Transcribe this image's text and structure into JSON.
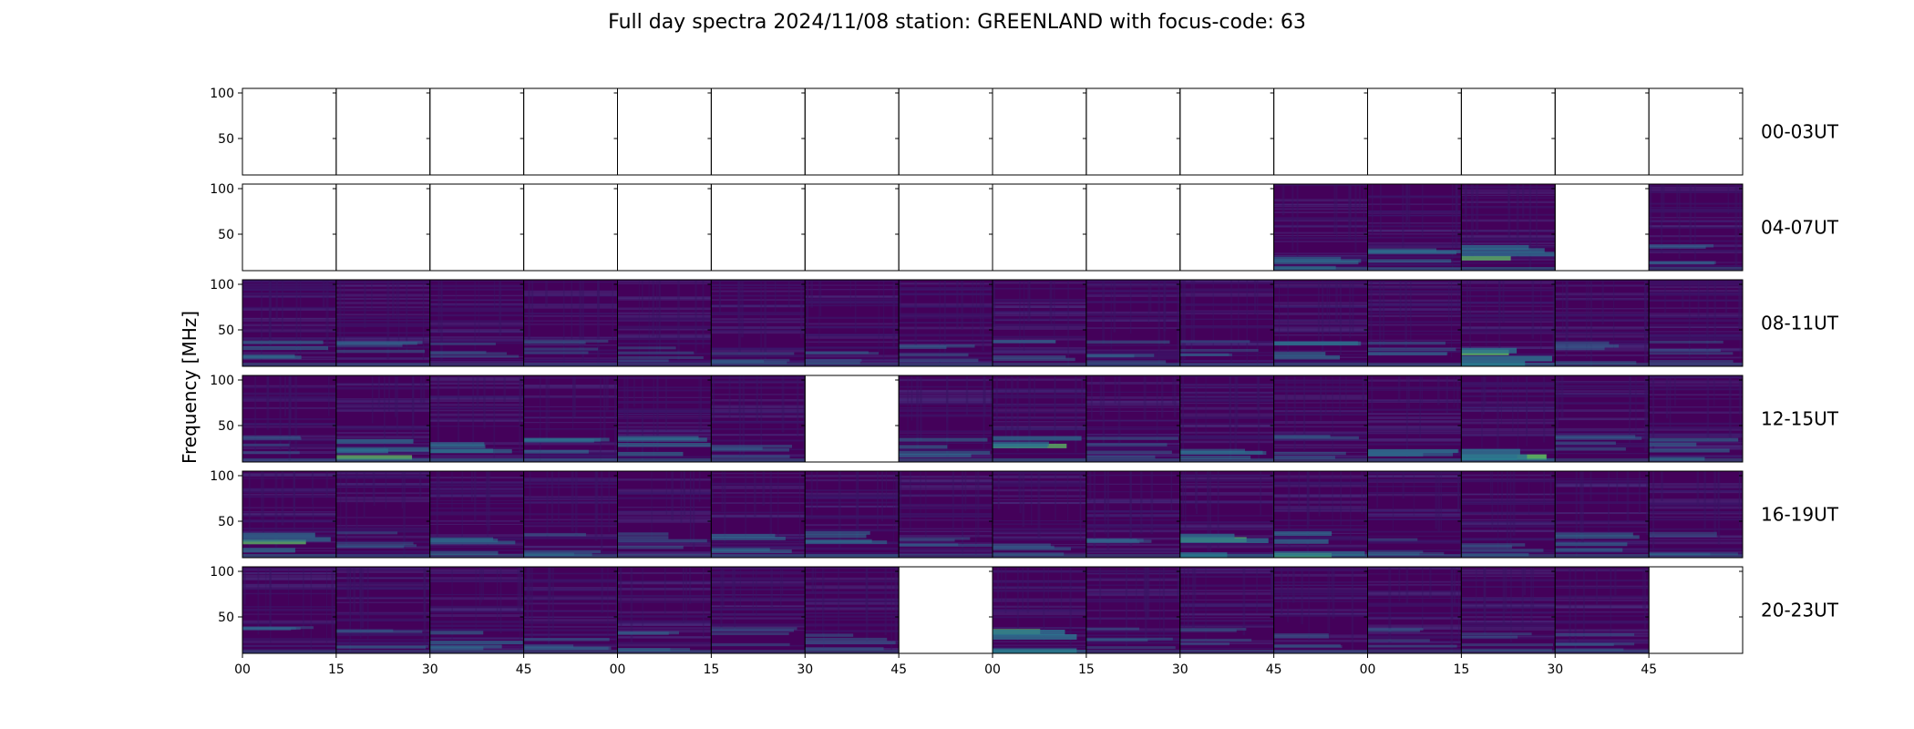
{
  "chart_data": {
    "type": "heatmap",
    "title": "Full day spectra 2024/11/08 station: GREENLAND with focus-code: 63",
    "ylabel": "Frequency [MHz]",
    "y_ticks": [
      "100",
      "50"
    ],
    "ylim": [
      10,
      105
    ],
    "x_tick_labels": [
      "00",
      "15",
      "30",
      "45",
      "00",
      "15",
      "30",
      "45",
      "00",
      "15",
      "30",
      "45",
      "00",
      "15",
      "30",
      "45"
    ],
    "colormap": "viridis",
    "colors": {
      "background": "#44015a",
      "low": "#440154",
      "mid": "#2c728e",
      "high": "#5ec962"
    },
    "rows": [
      {
        "label": "00-03UT",
        "panels": [
          0,
          0,
          0,
          0,
          0,
          0,
          0,
          0,
          0,
          0,
          0,
          0,
          0,
          0,
          0,
          0
        ],
        "bright": [
          0,
          0,
          0,
          0,
          0,
          0,
          0,
          0,
          0,
          0,
          0,
          0,
          0,
          0,
          0,
          0
        ]
      },
      {
        "label": "04-07UT",
        "panels": [
          0,
          0,
          0,
          0,
          0,
          0,
          0,
          0,
          0,
          0,
          0,
          1,
          1,
          1,
          0,
          1
        ],
        "bright": [
          0,
          0,
          0,
          0,
          0,
          0,
          0,
          0,
          0,
          0,
          0,
          0.4,
          0.4,
          0.6,
          0,
          0.3
        ]
      },
      {
        "label": "08-11UT",
        "panels": [
          1,
          1,
          1,
          1,
          1,
          1,
          1,
          1,
          1,
          1,
          1,
          1,
          1,
          1,
          1,
          1
        ],
        "bright": [
          0.4,
          0.3,
          0.2,
          0.2,
          0.2,
          0.2,
          0.2,
          0.3,
          0.3,
          0.3,
          0.2,
          0.5,
          0.3,
          0.8,
          0.3,
          0.2
        ]
      },
      {
        "label": "12-15UT",
        "panels": [
          1,
          1,
          1,
          1,
          1,
          1,
          0,
          1,
          1,
          1,
          1,
          1,
          1,
          1,
          1,
          1
        ],
        "bright": [
          0.2,
          0.6,
          0.5,
          0.4,
          0.5,
          0.3,
          0,
          0.4,
          0.6,
          0.3,
          0.4,
          0.3,
          0.4,
          0.8,
          0.3,
          0.4
        ]
      },
      {
        "label": "16-19UT",
        "panels": [
          1,
          1,
          1,
          1,
          1,
          1,
          1,
          1,
          1,
          1,
          1,
          1,
          1,
          1,
          1,
          1
        ],
        "bright": [
          0.6,
          0.2,
          0.4,
          0.3,
          0.3,
          0.4,
          0.4,
          0.2,
          0.3,
          0.3,
          0.7,
          0.6,
          0.2,
          0.3,
          0.4,
          0.2
        ]
      },
      {
        "label": "20-23UT",
        "panels": [
          1,
          1,
          1,
          1,
          1,
          1,
          1,
          0,
          1,
          1,
          1,
          1,
          1,
          1,
          1,
          0
        ],
        "bright": [
          0.2,
          0.2,
          0.4,
          0.3,
          0.3,
          0.2,
          0.3,
          0,
          0.8,
          0.2,
          0.2,
          0.2,
          0.2,
          0.2,
          0.2,
          0
        ]
      }
    ]
  }
}
